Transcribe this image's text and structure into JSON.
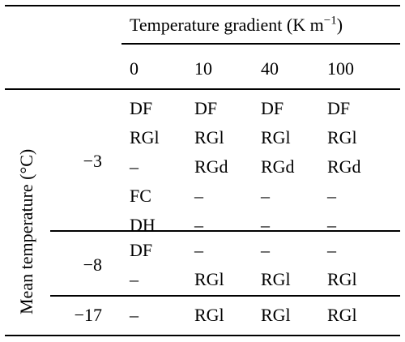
{
  "header": {
    "group_label": "Temperature gradient (K m",
    "group_label_exp": "−1",
    "group_label_close": ")",
    "gradients": [
      "0",
      "10",
      "40",
      "100"
    ]
  },
  "row_axis_label": "Mean temperature (°C)",
  "rows": [
    {
      "mean": "−3",
      "cells": [
        [
          "DF",
          "RGl",
          "–",
          "FC",
          "DH"
        ],
        [
          "DF",
          "RGl",
          "RGd",
          "–",
          "–"
        ],
        [
          "DF",
          "RGl",
          "RGd",
          "–",
          "–"
        ],
        [
          "DF",
          "RGl",
          "RGd",
          "–",
          "–"
        ]
      ]
    },
    {
      "mean": "−8",
      "cells": [
        [
          "DF",
          "–"
        ],
        [
          "–",
          "RGl"
        ],
        [
          "–",
          "RGl"
        ],
        [
          "–",
          "RGl"
        ]
      ]
    },
    {
      "mean": "−17",
      "cells": [
        [
          "–"
        ],
        [
          "RGl"
        ],
        [
          "RGl"
        ],
        [
          "RGl"
        ]
      ]
    }
  ]
}
